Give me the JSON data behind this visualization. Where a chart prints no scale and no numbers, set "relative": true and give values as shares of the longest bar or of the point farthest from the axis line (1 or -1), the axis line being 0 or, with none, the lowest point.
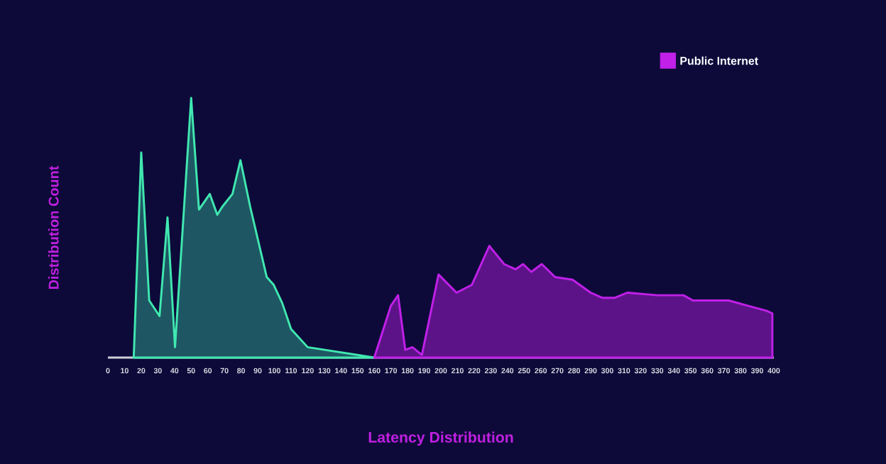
{
  "chart_data": {
    "type": "area",
    "relative": true,
    "xlabel": "Latency Distribution",
    "ylabel": "Distribution Count",
    "xlim": [
      0,
      400
    ],
    "xticks": [
      0,
      10,
      20,
      30,
      40,
      50,
      60,
      70,
      80,
      90,
      100,
      110,
      120,
      130,
      140,
      150,
      160,
      170,
      180,
      190,
      200,
      210,
      220,
      230,
      240,
      250,
      260,
      270,
      280,
      290,
      300,
      310,
      320,
      330,
      340,
      350,
      360,
      370,
      380,
      390,
      400
    ],
    "legend": "top right",
    "series": [
      {
        "color": "#40e8b0",
        "x": [
          15.5,
          20,
          24.8,
          31,
          35.8,
          40.3,
          50,
          54.7,
          61.2,
          65.7,
          68.6,
          74.8,
          79.6,
          85.5,
          95.4,
          99.6,
          104.7,
          110,
          120,
          160
        ],
        "values": [
          0,
          0.79,
          0.22,
          0.16,
          0.54,
          0.04,
          1,
          0.57,
          0.63,
          0.55,
          0.58,
          0.63,
          0.76,
          0.58,
          0.31,
          0.28,
          0.21,
          0.11,
          0.04,
          0
        ]
      },
      {
        "name": "Public Internet",
        "color": "#c020e8",
        "x": [
          160,
          170,
          174.3,
          178.6,
          182.9,
          188.6,
          198.6,
          209.4,
          218.6,
          229.1,
          238,
          244.9,
          249.4,
          254.3,
          260.6,
          268.6,
          279.1,
          290,
          297.1,
          304.3,
          312,
          330,
          345.7,
          351.4,
          372.9,
          384.3,
          395.7,
          399.1,
          399.1
        ],
        "values": [
          0,
          0.2,
          0.24,
          0.03,
          0.04,
          0.01,
          0.32,
          0.25,
          0.28,
          0.43,
          0.36,
          0.34,
          0.36,
          0.33,
          0.36,
          0.31,
          0.3,
          0.25,
          0.23,
          0.23,
          0.25,
          0.24,
          0.24,
          0.22,
          0.22,
          0.2,
          0.18,
          0.17,
          0
        ]
      }
    ]
  }
}
